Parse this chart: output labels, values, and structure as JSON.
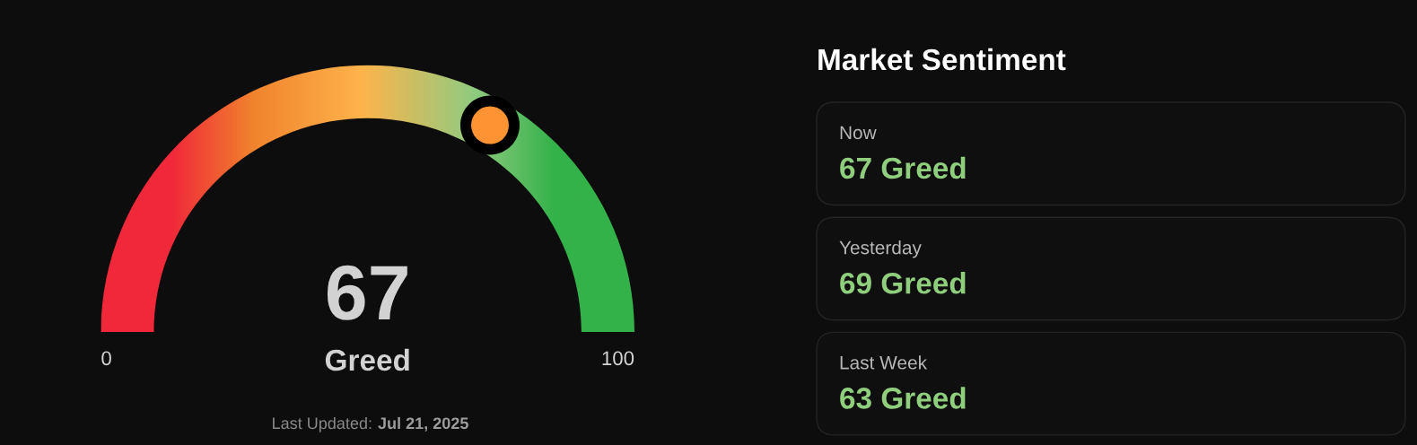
{
  "chart_data": [
    {
      "type": "other",
      "categories": [
        "Greed"
      ],
      "values": [
        67
      ],
      "color": "#fe9333",
      "data_labels": true,
      "annotations": [
        "0",
        "100",
        "Last Updated:",
        "Jul 21, 2025"
      ]
    },
    {
      "type": "other",
      "title": "Market Sentiment",
      "annotations": [
        "Now",
        "67 Greed",
        "Yesterday",
        "69 Greed",
        "Last Week",
        "63 Greed"
      ]
    }
  ]
}
